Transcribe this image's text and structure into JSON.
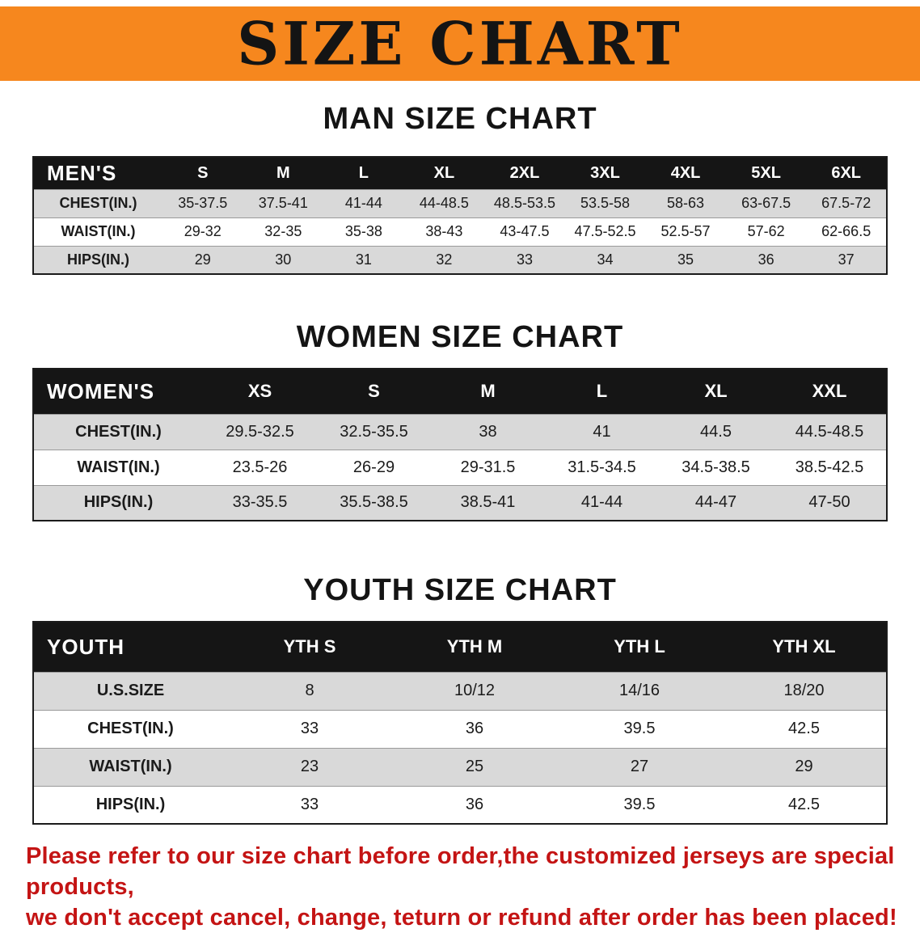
{
  "banner": {
    "title": "SIZE CHART"
  },
  "colors": {
    "banner_orange": "#F6871E",
    "table_header_black": "#151515",
    "row_gray": "#D9D9D9",
    "disclaimer_red": "#C41414"
  },
  "sections": [
    {
      "id": "men",
      "heading": "MAN SIZE CHART",
      "table": {
        "header": [
          "MEN'S",
          "S",
          "M",
          "L",
          "XL",
          "2XL",
          "3XL",
          "4XL",
          "5XL",
          "6XL"
        ],
        "rows": [
          [
            "CHEST(IN.)",
            "35-37.5",
            "37.5-41",
            "41-44",
            "44-48.5",
            "48.5-53.5",
            "53.5-58",
            "58-63",
            "63-67.5",
            "67.5-72"
          ],
          [
            "WAIST(IN.)",
            "29-32",
            "32-35",
            "35-38",
            "38-43",
            "43-47.5",
            "47.5-52.5",
            "52.5-57",
            "57-62",
            "62-66.5"
          ],
          [
            "HIPS(IN.)",
            "29",
            "30",
            "31",
            "32",
            "33",
            "34",
            "35",
            "36",
            "37"
          ]
        ]
      }
    },
    {
      "id": "women",
      "heading": "WOMEN SIZE CHART",
      "table": {
        "header": [
          "WOMEN'S",
          "XS",
          "S",
          "M",
          "L",
          "XL",
          "XXL"
        ],
        "rows": [
          [
            "CHEST(IN.)",
            "29.5-32.5",
            "32.5-35.5",
            "38",
            "41",
            "44.5",
            "44.5-48.5"
          ],
          [
            "WAIST(IN.)",
            "23.5-26",
            "26-29",
            "29-31.5",
            "31.5-34.5",
            "34.5-38.5",
            "38.5-42.5"
          ],
          [
            "HIPS(IN.)",
            "33-35.5",
            "35.5-38.5",
            "38.5-41",
            "41-44",
            "44-47",
            "47-50"
          ]
        ]
      }
    },
    {
      "id": "youth",
      "heading": "YOUTH SIZE CHART",
      "table": {
        "header": [
          "YOUTH",
          "YTH S",
          "YTH M",
          "YTH L",
          "YTH XL"
        ],
        "rows": [
          [
            "U.S.SIZE",
            "8",
            "10/12",
            "14/16",
            "18/20"
          ],
          [
            "CHEST(IN.)",
            "33",
            "36",
            "39.5",
            "42.5"
          ],
          [
            "WAIST(IN.)",
            "23",
            "25",
            "27",
            "29"
          ],
          [
            "HIPS(IN.)",
            "33",
            "36",
            "39.5",
            "42.5"
          ]
        ]
      }
    }
  ],
  "disclaimer": {
    "lines": [
      "Please refer to our size chart before order,the customized jerseys are special products,",
      "we don't accept cancel, change, teturn or refund after order has been placed!"
    ]
  }
}
